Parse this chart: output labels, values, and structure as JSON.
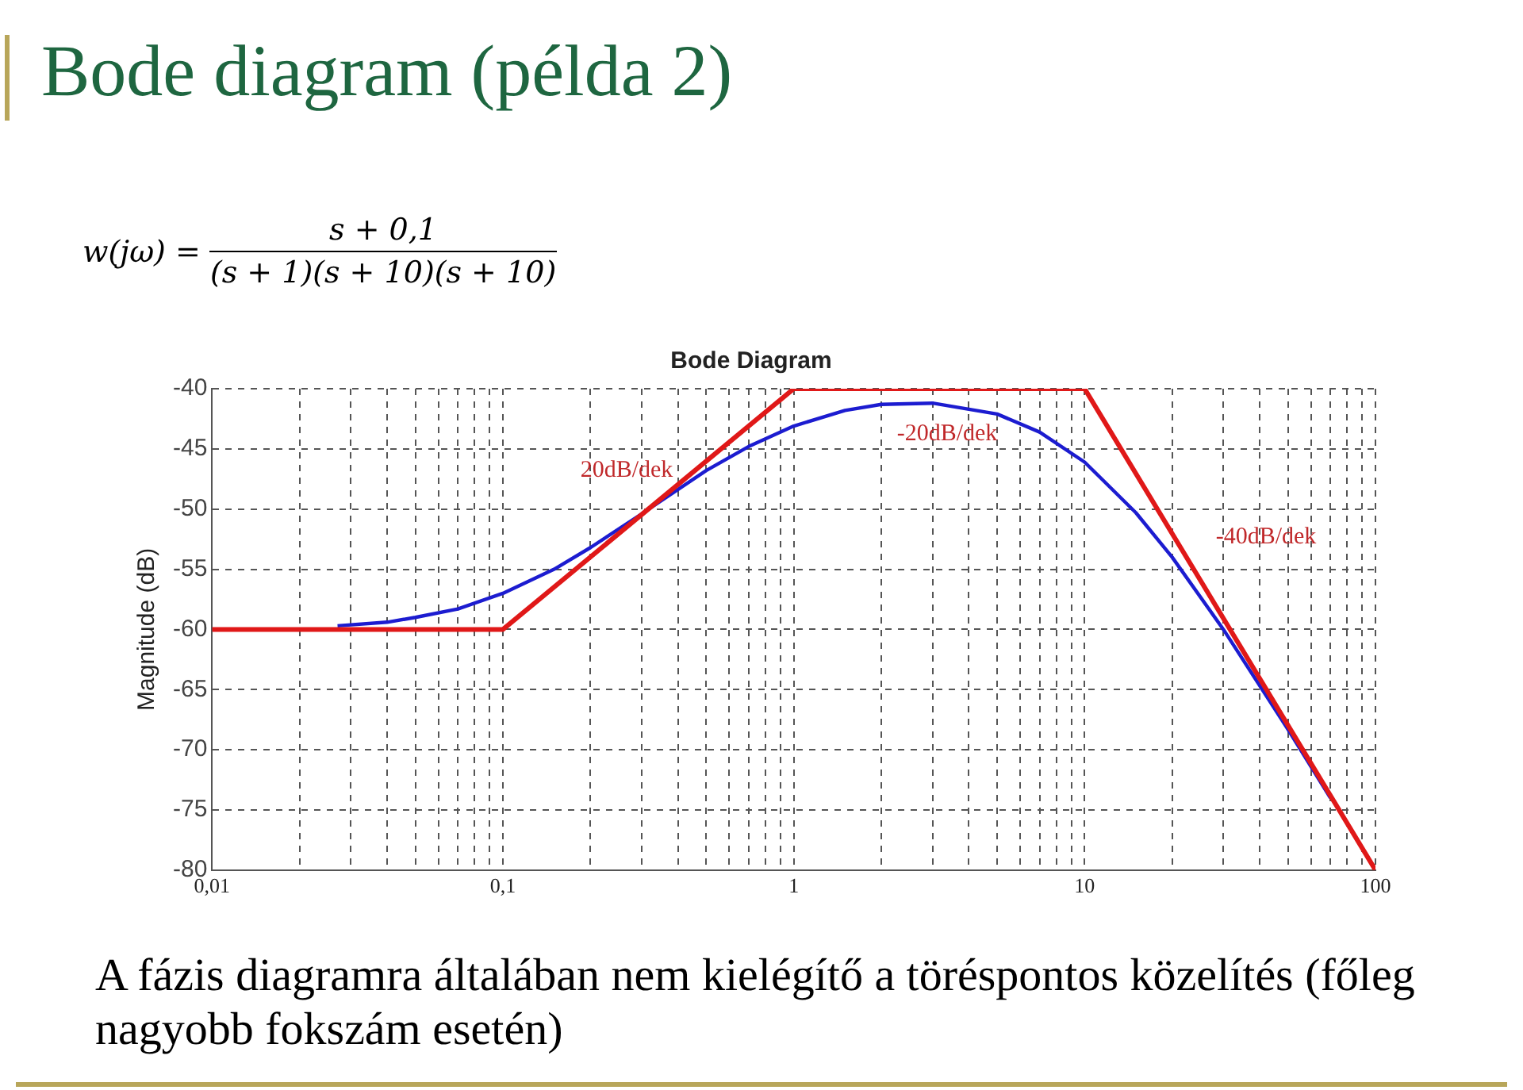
{
  "chart_data": {
    "type": "line",
    "title": "Bode Diagram",
    "subtitle": "Bode diagram (példa 2)",
    "ylabel": "Magnitude (dB)",
    "annotations": [
      "w(jω) =",
      "s + 0,1",
      "(s + 1)(s + 10)(s + 10)",
      "20dB/dek",
      "-20dB/dek",
      "-40dB/dek",
      "A fázis diagramra általában nem kielégítő a töréspontos közelítés (főleg nagyobb fokszám esetén)"
    ],
    "log": "x",
    "grid": true,
    "legend": false,
    "xlim": [
      0.01,
      100
    ],
    "ylim": [
      -80,
      -40
    ],
    "xticks": [
      {
        "value": 0.01,
        "label": "0,01"
      },
      {
        "value": 0.02,
        "label": null
      },
      {
        "value": 0.03,
        "label": null
      },
      {
        "value": 0.04,
        "label": null
      },
      {
        "value": 0.05,
        "label": null
      },
      {
        "value": 0.06,
        "label": null
      },
      {
        "value": 0.07,
        "label": null
      },
      {
        "value": 0.08,
        "label": null
      },
      {
        "value": 0.09,
        "label": null
      },
      {
        "value": 0.1,
        "label": "0,1"
      },
      {
        "value": 0.2,
        "label": null
      },
      {
        "value": 0.3,
        "label": null
      },
      {
        "value": 0.4,
        "label": null
      },
      {
        "value": 0.5,
        "label": null
      },
      {
        "value": 0.6,
        "label": null
      },
      {
        "value": 0.7,
        "label": null
      },
      {
        "value": 0.8,
        "label": null
      },
      {
        "value": 0.9,
        "label": null
      },
      1,
      {
        "value": 2,
        "label": null
      },
      {
        "value": 3,
        "label": null
      },
      {
        "value": 4,
        "label": null
      },
      {
        "value": 5,
        "label": null
      },
      {
        "value": 6,
        "label": null
      },
      {
        "value": 7,
        "label": null
      },
      {
        "value": 8,
        "label": null
      },
      {
        "value": 9,
        "label": null
      },
      10,
      {
        "value": 20,
        "label": null
      },
      {
        "value": 30,
        "label": null
      },
      {
        "value": 40,
        "label": null
      },
      {
        "value": 50,
        "label": null
      },
      {
        "value": 60,
        "label": null
      },
      {
        "value": 70,
        "label": null
      },
      {
        "value": 80,
        "label": null
      },
      {
        "value": 90,
        "label": null
      },
      100
    ],
    "yticks": [
      -80,
      -75,
      -70,
      -65,
      -60,
      -55,
      -50,
      -45,
      -40
    ],
    "series": [
      {
        "color": "#1c1cd0",
        "x": [
          0.027,
          0.04,
          0.05,
          0.07,
          0.1,
          0.15,
          0.2,
          0.3,
          0.5,
          0.7,
          1,
          1.5,
          2,
          3,
          5,
          7,
          10,
          15,
          20,
          30,
          50,
          70
        ],
        "values": [
          -59.7,
          -59.4,
          -59.0,
          -58.3,
          -57.0,
          -55.0,
          -53.2,
          -50.4,
          -46.8,
          -44.8,
          -43.1,
          -41.8,
          -41.3,
          -41.2,
          -42.1,
          -43.6,
          -46.1,
          -50.3,
          -54.0,
          -60.0,
          -68.3,
          -74.0
        ]
      },
      {
        "color": "#e01818",
        "x": [
          0.01,
          0.1,
          1,
          10,
          100
        ],
        "values": [
          -60,
          -60,
          -40,
          -40,
          -80
        ]
      }
    ]
  }
}
